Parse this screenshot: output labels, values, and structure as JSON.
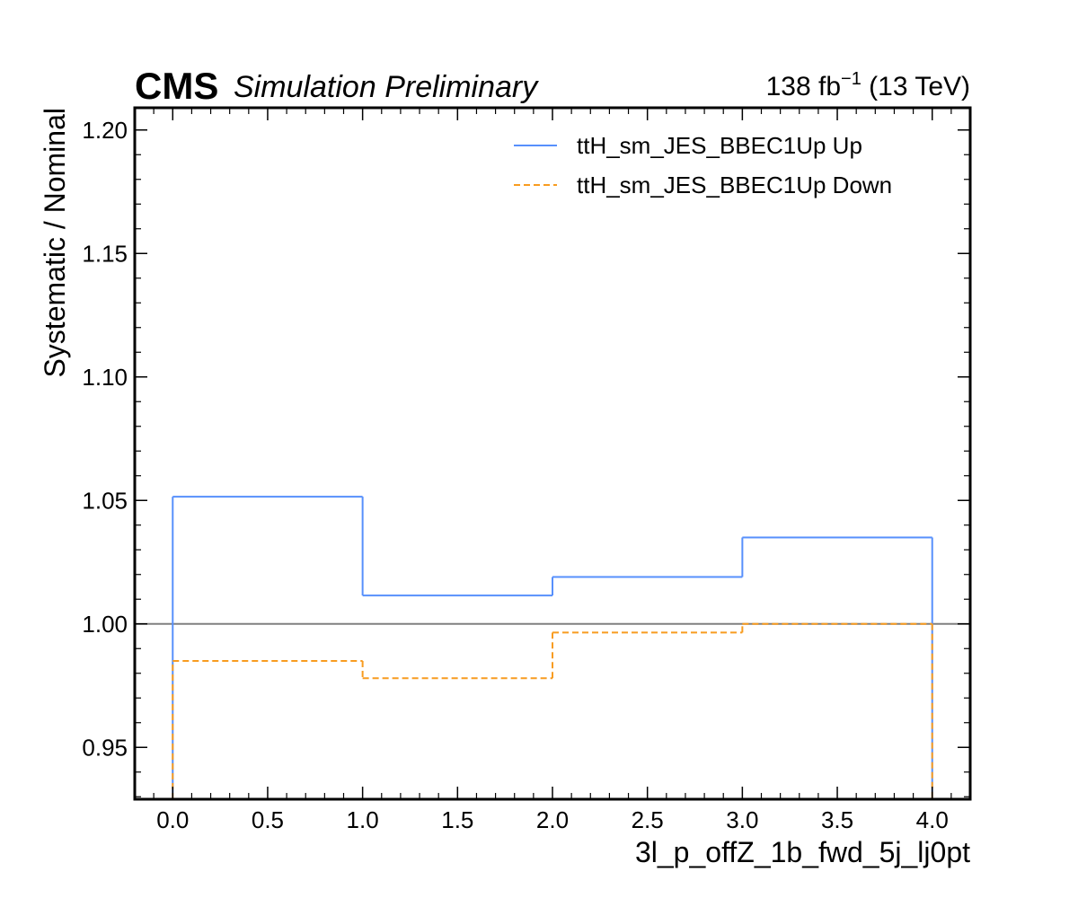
{
  "header": {
    "experiment": "CMS",
    "status": "Simulation Preliminary",
    "lumi_value": "138 fb",
    "lumi_exponent": "−1",
    "energy": " (13 TeV)"
  },
  "chart_data": {
    "type": "line",
    "drawstyle": "steps",
    "title": "",
    "xlabel": "3l_p_offZ_1b_fwd_5j_lj0pt",
    "ylabel": "Systematic / Nominal",
    "xlim": [
      -0.2,
      4.2
    ],
    "ylim": [
      0.929,
      1.209
    ],
    "x_ticks": [
      0.0,
      0.5,
      1.0,
      1.5,
      2.0,
      2.5,
      3.0,
      3.5,
      4.0
    ],
    "x_tick_labels": [
      "0.0",
      "0.5",
      "1.0",
      "1.5",
      "2.0",
      "2.5",
      "3.0",
      "3.5",
      "4.0"
    ],
    "y_ticks": [
      0.95,
      1.0,
      1.05,
      1.1,
      1.15,
      1.2
    ],
    "y_tick_labels": [
      "0.95",
      "1.00",
      "1.05",
      "1.10",
      "1.15",
      "1.20"
    ],
    "bin_edges": [
      0,
      1,
      2,
      3,
      4
    ],
    "reference_line": 1.0,
    "grid": false,
    "legend_position": "top-right",
    "series": [
      {
        "name": "ttH_sm_JES_BBEC1Up Up",
        "values": [
          1.0515,
          1.0115,
          1.019,
          1.035
        ],
        "color": "#5790fc",
        "dash": "solid"
      },
      {
        "name": "ttH_sm_JES_BBEC1Up Down",
        "values": [
          0.985,
          0.978,
          0.9965,
          1.0
        ],
        "color": "#f89c20",
        "dash": "dashed"
      }
    ],
    "reference_color": "#808080"
  }
}
